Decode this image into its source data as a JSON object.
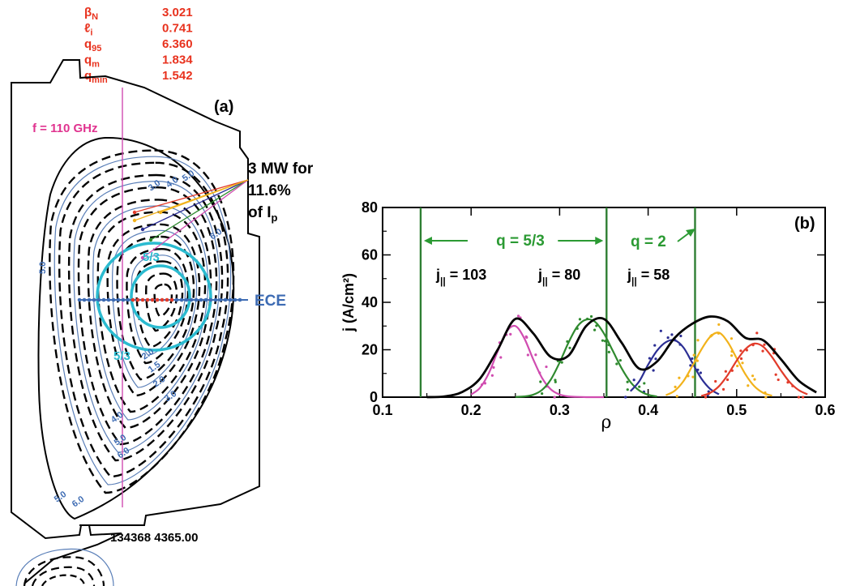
{
  "params": [
    {
      "label": "β",
      "sub": "N",
      "value": "3.021"
    },
    {
      "label": "ℓ",
      "sub": "i",
      "value": "0.741"
    },
    {
      "label": "q",
      "sub": "95",
      "value": "6.360"
    },
    {
      "label": "q",
      "sub": "m",
      "value": "1.834"
    },
    {
      "label": "q",
      "sub": "min",
      "value": "1.542"
    }
  ],
  "panel_a": {
    "tag": "(a)",
    "freq_label": "f = 110 GHz",
    "ece_label": "ECE",
    "ec_line1": "3 MW for",
    "ec_line2": "11.6%",
    "ec_line3": "of I",
    "ec_line3_sub": "p",
    "surface_label_1": "5/3",
    "surface_label_2": "5/3",
    "shot_label": "134368 4365.00",
    "contour_labels": [
      "3.0",
      "4.0",
      "5.0",
      "6.0",
      "2.0",
      "1.5",
      "2.0",
      "3.0",
      "4.0",
      "5.0",
      "6.0",
      "5.0",
      "6.0"
    ]
  },
  "colors": {
    "param_red": "#e8321e",
    "magenta": "#e0338f",
    "ece_blue": "#3d6bb3",
    "cyan": "#2bbbd0",
    "green_line": "#2f7f33",
    "green_text": "#2b9a33",
    "contour_blue": "#5a7fb8",
    "pink": "#d04cb0",
    "green": "#2f8a2f",
    "navy": "#2b2e94",
    "gold": "#f2b21b",
    "red": "#e23b2a"
  },
  "chart_data": {
    "type": "line",
    "title": "",
    "panel_tag": "(b)",
    "xlabel": "ρ",
    "ylabel": "j (A/cm²)",
    "xlim": [
      0.1,
      0.6
    ],
    "ylim": [
      0,
      80
    ],
    "xticks": [
      "0.1",
      "0.2",
      "0.3",
      "0.4",
      "0.5",
      "0.6"
    ],
    "yticks": [
      "0",
      "20",
      "40",
      "60",
      "80"
    ],
    "vlines": [
      0.143,
      0.353,
      0.453
    ],
    "annotations": {
      "q53": "q = 5/3",
      "q2": "q = 2",
      "j1": "103",
      "j2": "80",
      "j3": "58",
      "j_prefix": "j",
      "j_sub": "||"
    },
    "series": [
      {
        "key": "pink",
        "x": [
          0.2,
          0.21,
          0.22,
          0.23,
          0.24,
          0.25,
          0.26,
          0.27,
          0.28,
          0.29,
          0.3,
          0.31,
          0.32,
          0.33,
          0.34,
          0.35
        ],
        "y": [
          1.1,
          3.9,
          10.1,
          19.3,
          27.6,
          30.0,
          24.9,
          16.1,
          8.2,
          3.3,
          1.1,
          0.3,
          0.1,
          0,
          0,
          0
        ]
      },
      {
        "key": "green",
        "x": [
          0.25,
          0.26,
          0.27,
          0.28,
          0.29,
          0.3,
          0.31,
          0.32,
          0.33,
          0.34,
          0.35,
          0.36,
          0.37,
          0.38,
          0.39,
          0.4,
          0.41
        ],
        "y": [
          0.1,
          0.3,
          1.0,
          3.0,
          7.4,
          14.6,
          23.0,
          29.8,
          32.7,
          31.8,
          26.9,
          19.6,
          12.2,
          6.4,
          2.8,
          1.0,
          0.3
        ]
      },
      {
        "key": "navy",
        "x": [
          0.38,
          0.39,
          0.4,
          0.41,
          0.42,
          0.43,
          0.44,
          0.45,
          0.46,
          0.47,
          0.48
        ],
        "y": [
          2.5,
          6.7,
          13.7,
          19.6,
          23.2,
          24.0,
          20.9,
          14.4,
          7.9,
          3.5,
          1.2
        ]
      },
      {
        "key": "gold",
        "x": [
          0.42,
          0.43,
          0.44,
          0.45,
          0.46,
          0.47,
          0.48,
          0.49,
          0.5,
          0.51,
          0.52,
          0.53,
          0.54
        ],
        "y": [
          0.8,
          2.7,
          6.8,
          13.2,
          20.0,
          25.4,
          27.2,
          23.2,
          16.4,
          9.6,
          4.6,
          1.8,
          0.6
        ]
      },
      {
        "key": "red",
        "x": [
          0.46,
          0.47,
          0.48,
          0.49,
          0.5,
          0.51,
          0.52,
          0.53,
          0.54,
          0.55,
          0.56,
          0.57,
          0.58
        ],
        "y": [
          0.5,
          1.8,
          4.6,
          9.4,
          15.4,
          20.3,
          22.6,
          21.3,
          16.9,
          11.3,
          6.3,
          3.0,
          1.2
        ]
      },
      {
        "key": "black",
        "x": [
          0.15,
          0.17,
          0.19,
          0.21,
          0.23,
          0.25,
          0.27,
          0.29,
          0.31,
          0.33,
          0.35,
          0.37,
          0.39,
          0.41,
          0.43,
          0.45,
          0.47,
          0.49,
          0.51,
          0.53,
          0.55,
          0.57,
          0.59
        ],
        "y": [
          0,
          0.3,
          2.2,
          7.8,
          20.0,
          33.0,
          27.0,
          17.0,
          17.5,
          30.0,
          33.0,
          23.0,
          12.0,
          15.0,
          25.0,
          31.0,
          34.0,
          32.0,
          25.0,
          24.0,
          16.0,
          7.0,
          2.0
        ]
      }
    ]
  }
}
